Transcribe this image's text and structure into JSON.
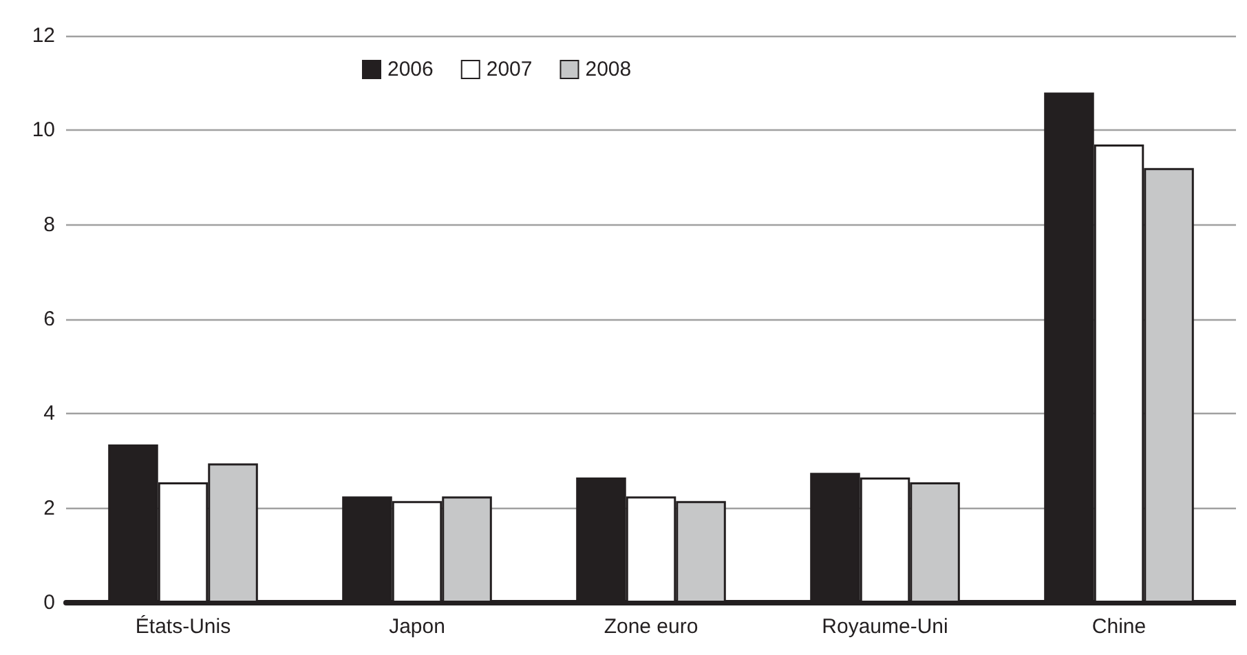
{
  "chart_data": {
    "type": "bar",
    "categories": [
      "États-Unis",
      "Japon",
      "Zone euro",
      "Royaume-Uni",
      "Chine"
    ],
    "series": [
      {
        "name": "2006",
        "color": "#231f20",
        "values": [
          3.35,
          2.25,
          2.65,
          2.75,
          10.8
        ]
      },
      {
        "name": "2007",
        "color": "#ffffff",
        "values": [
          2.55,
          2.15,
          2.25,
          2.65,
          9.7
        ]
      },
      {
        "name": "2008",
        "color": "#c6c7c8",
        "values": [
          2.95,
          2.25,
          2.15,
          2.55,
          9.2
        ]
      }
    ],
    "ylim": [
      0,
      12
    ],
    "yticks": [
      0,
      2,
      4,
      6,
      8,
      10,
      12
    ],
    "grid": "y",
    "legend": "top"
  }
}
